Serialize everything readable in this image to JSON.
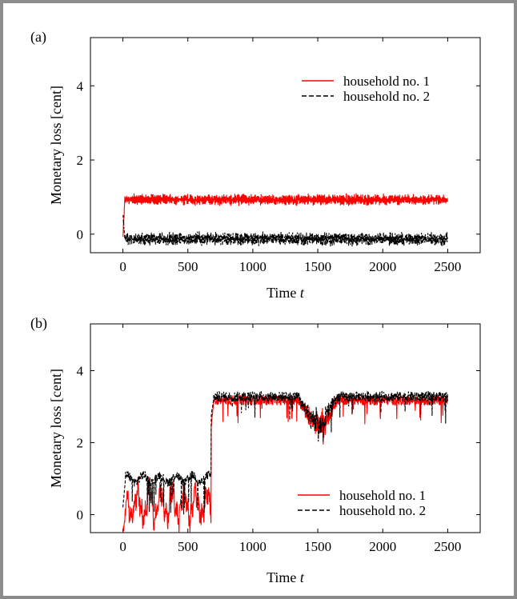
{
  "colors": {
    "series1": "#ff0000",
    "series2": "#000000",
    "frame": "#8c8c8c"
  },
  "chart_data": [
    {
      "type": "line",
      "panel_label": "(a)",
      "xlabel_main": "Time ",
      "xlabel_var": "t",
      "ylabel": "Monetary loss [cent]",
      "xlim": [
        -250,
        2750
      ],
      "ylim": [
        -0.5,
        5.3
      ],
      "xticks": [
        0,
        500,
        1000,
        1500,
        2000,
        2500
      ],
      "yticks": [
        0,
        2,
        4
      ],
      "legend_position": "top-right",
      "series": [
        {
          "name": "household no. 1",
          "style": "solid",
          "color": "#ff0000",
          "description_points": [
            [
              0,
              -0.1
            ],
            [
              20,
              1.0
            ],
            [
              2500,
              0.95
            ]
          ],
          "band": {
            "center": 0.93,
            "amplitude": 0.13,
            "start_value": -0.1
          }
        },
        {
          "name": "household no. 2",
          "style": "dashed",
          "color": "#000000",
          "description_points": [
            [
              0,
              0.6
            ],
            [
              20,
              -0.05
            ],
            [
              2500,
              -0.15
            ]
          ],
          "band": {
            "center": -0.13,
            "amplitude": 0.15,
            "start_value": 0.6
          }
        }
      ]
    },
    {
      "type": "line",
      "panel_label": "(b)",
      "xlabel_main": "Time ",
      "xlabel_var": "t",
      "ylabel": "Monetary loss [cent]",
      "xlim": [
        -250,
        2750
      ],
      "ylim": [
        -0.5,
        5.3
      ],
      "xticks": [
        0,
        500,
        1000,
        1500,
        2000,
        2500
      ],
      "yticks": [
        0,
        2,
        4
      ],
      "legend_position": "bottom-right",
      "series": [
        {
          "name": "household no. 1",
          "style": "solid",
          "color": "#ff0000",
          "key_points": [
            [
              0,
              -0.5
            ],
            [
              100,
              0.3
            ],
            [
              300,
              0.5
            ],
            [
              500,
              -0.2
            ],
            [
              620,
              0.3
            ],
            [
              700,
              3.2
            ],
            [
              1400,
              3.2
            ],
            [
              1520,
              2.2
            ],
            [
              1700,
              3.2
            ],
            [
              2500,
              3.2
            ]
          ]
        },
        {
          "name": "household no. 2",
          "style": "dashed",
          "color": "#000000",
          "key_points": [
            [
              0,
              0.1
            ],
            [
              100,
              1.0
            ],
            [
              300,
              1.0
            ],
            [
              500,
              0.9
            ],
            [
              620,
              1.0
            ],
            [
              700,
              3.3
            ],
            [
              1400,
              3.3
            ],
            [
              1520,
              2.3
            ],
            [
              1700,
              3.3
            ],
            [
              2500,
              3.3
            ]
          ]
        }
      ]
    }
  ]
}
